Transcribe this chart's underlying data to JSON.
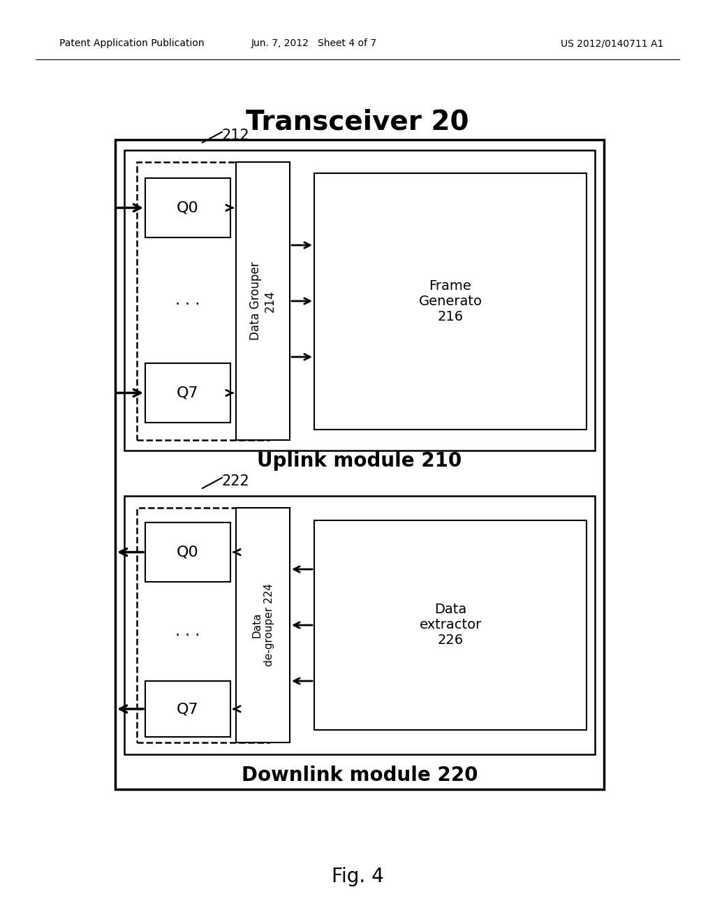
{
  "bg_color": "#ffffff",
  "header_left": "Patent Application Publication",
  "header_mid": "Jun. 7, 2012   Sheet 4 of 7",
  "header_right": "US 2012/0140711 A1",
  "title": "Transceiver 20",
  "fig_label": "Fig. 4",
  "uplink_label": "Uplink module 210",
  "downlink_label": "Downlink module 220",
  "uplink_group_label": "212",
  "downlink_group_label": "222",
  "uplink_grouper_label": "Data Grouper\n214",
  "uplink_frame_label": "Frame\nGenerato\n216",
  "downlink_degrouper_label": "Data\nde-grouper 224",
  "downlink_extractor_label": "Data\nextractor\n226"
}
